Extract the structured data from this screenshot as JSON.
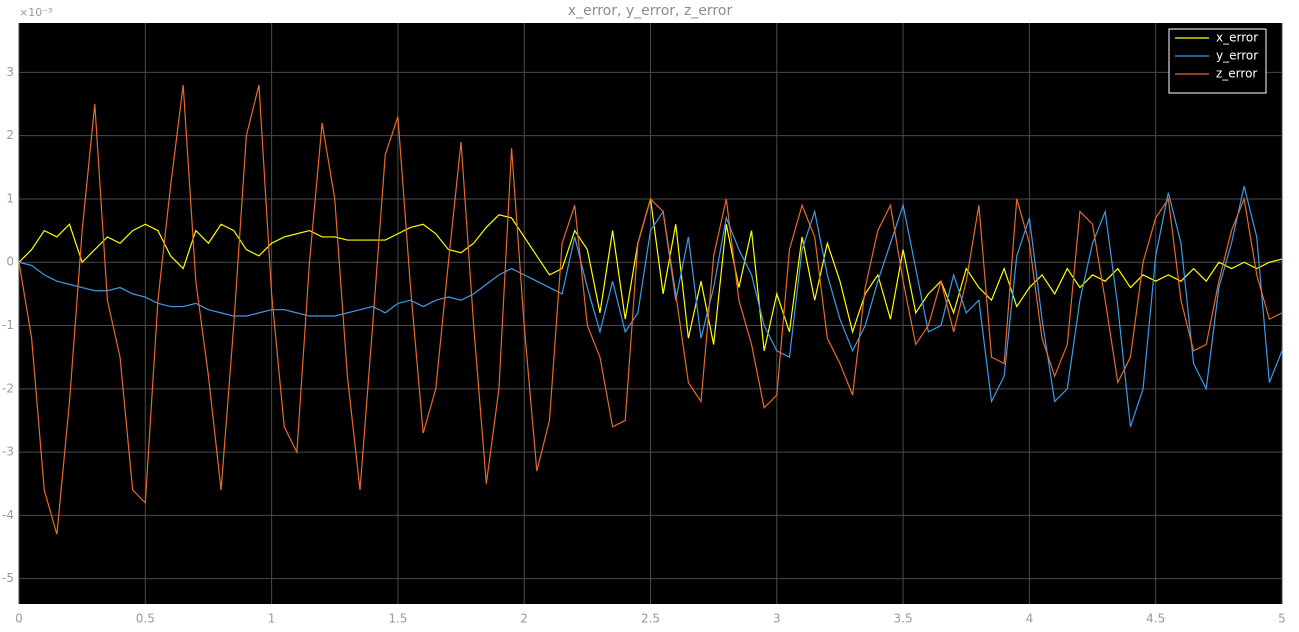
{
  "chart_data": {
    "type": "line",
    "title": "x_error, y_error, z_error",
    "y_multiplier": "×10⁻³",
    "xlim": [
      0,
      5
    ],
    "ylim": [
      -5.4,
      3.78
    ],
    "xticks": [
      0,
      0.5,
      1,
      1.5,
      2,
      2.5,
      3,
      3.5,
      4,
      4.5,
      5
    ],
    "yticks": [
      -5,
      -4,
      -3,
      -2,
      -1,
      0,
      1,
      2,
      3
    ],
    "grid": true,
    "legend": "top-right",
    "x": [
      0,
      0.05,
      0.1,
      0.15,
      0.2,
      0.25,
      0.3,
      0.35,
      0.4,
      0.45,
      0.5,
      0.55,
      0.6,
      0.65,
      0.7,
      0.75,
      0.8,
      0.85,
      0.9,
      0.95,
      1,
      1.05,
      1.1,
      1.15,
      1.2,
      1.25,
      1.3,
      1.35,
      1.4,
      1.45,
      1.5,
      1.55,
      1.6,
      1.65,
      1.7,
      1.75,
      1.8,
      1.85,
      1.9,
      1.95,
      2,
      2.05,
      2.1,
      2.15,
      2.2,
      2.25,
      2.3,
      2.35,
      2.4,
      2.45,
      2.5,
      2.55,
      2.6,
      2.65,
      2.7,
      2.75,
      2.8,
      2.85,
      2.9,
      2.95,
      3,
      3.05,
      3.1,
      3.15,
      3.2,
      3.25,
      3.3,
      3.35,
      3.4,
      3.45,
      3.5,
      3.55,
      3.6,
      3.65,
      3.7,
      3.75,
      3.8,
      3.85,
      3.9,
      3.95,
      4,
      4.05,
      4.1,
      4.15,
      4.2,
      4.25,
      4.3,
      4.35,
      4.4,
      4.45,
      4.5,
      4.55,
      4.6,
      4.65,
      4.7,
      4.75,
      4.8,
      4.85,
      4.9,
      4.95,
      5
    ],
    "series": [
      {
        "name": "x_error",
        "color": "#ffff00",
        "values": [
          0,
          0.2,
          0.5,
          0.4,
          0.6,
          0,
          0.2,
          0.4,
          0.3,
          0.5,
          0.6,
          0.5,
          0.1,
          -0.1,
          0.5,
          0.3,
          0.6,
          0.5,
          0.2,
          0.1,
          0.3,
          0.4,
          0.45,
          0.5,
          0.4,
          0.4,
          0.35,
          0.35,
          0.35,
          0.35,
          0.45,
          0.55,
          0.6,
          0.45,
          0.2,
          0.15,
          0.3,
          0.55,
          0.75,
          0.7,
          0.4,
          0.1,
          -0.2,
          -0.1,
          0.5,
          0.2,
          -0.8,
          0.5,
          -0.9,
          0.3,
          1,
          -0.5,
          0.6,
          -1.2,
          -0.3,
          -1.3,
          0.6,
          -0.4,
          0.5,
          -1.4,
          -0.5,
          -1.1,
          0.4,
          -0.6,
          0.3,
          -0.3,
          -1.1,
          -0.5,
          -0.2,
          -0.9,
          0.2,
          -0.8,
          -0.5,
          -0.3,
          -0.8,
          -0.1,
          -0.4,
          -0.6,
          -0.1,
          -0.7,
          -0.4,
          -0.2,
          -0.5,
          -0.1,
          -0.4,
          -0.2,
          -0.3,
          -0.1,
          -0.4,
          -0.2,
          -0.3,
          -0.2,
          -0.3,
          -0.1,
          -0.3,
          0,
          -0.1,
          0,
          -0.1,
          0,
          0.05
        ]
      },
      {
        "name": "y_error",
        "color": "#3d9be9",
        "values": [
          0,
          -0.05,
          -0.2,
          -0.3,
          -0.35,
          -0.4,
          -0.45,
          -0.45,
          -0.4,
          -0.5,
          -0.55,
          -0.65,
          -0.7,
          -0.7,
          -0.65,
          -0.75,
          -0.8,
          -0.85,
          -0.85,
          -0.8,
          -0.75,
          -0.75,
          -0.8,
          -0.85,
          -0.85,
          -0.85,
          -0.8,
          -0.75,
          -0.7,
          -0.8,
          -0.65,
          -0.6,
          -0.7,
          -0.6,
          -0.55,
          -0.6,
          -0.5,
          -0.35,
          -0.2,
          -0.1,
          -0.2,
          -0.3,
          -0.4,
          -0.5,
          0.4,
          -0.4,
          -1.1,
          -0.3,
          -1.1,
          -0.8,
          0.5,
          0.8,
          -0.6,
          0.4,
          -1.2,
          -0.4,
          0.7,
          0.2,
          -0.2,
          -1,
          -1.4,
          -1.5,
          0.2,
          0.8,
          -0.2,
          -0.9,
          -1.4,
          -1,
          -0.3,
          0.3,
          0.9,
          -0.1,
          -1.1,
          -1,
          -0.2,
          -0.8,
          -0.6,
          -2.2,
          -1.8,
          0.1,
          0.7,
          -0.9,
          -2.2,
          -2,
          -0.6,
          0.3,
          0.8,
          -0.7,
          -2.6,
          -2,
          0.1,
          1.1,
          0.3,
          -1.6,
          -2,
          -0.4,
          0.3,
          1.2,
          0.4,
          -1.9,
          -1.4
        ]
      },
      {
        "name": "z_error",
        "color": "#e8692c",
        "values": [
          0,
          -1.2,
          -3.6,
          -4.3,
          -2.2,
          0.5,
          2.5,
          -0.6,
          -1.5,
          -3.6,
          -3.8,
          -0.6,
          1.2,
          2.8,
          -0.3,
          -1.8,
          -3.6,
          -1,
          2,
          2.8,
          -0.5,
          -2.6,
          -3,
          0,
          2.2,
          1,
          -1.8,
          -3.6,
          -1,
          1.7,
          2.3,
          -0.4,
          -2.7,
          -2,
          0,
          1.9,
          -1,
          -3.5,
          -2,
          1.8,
          -1,
          -3.3,
          -2.5,
          0.3,
          0.9,
          -1,
          -1.5,
          -2.6,
          -2.5,
          0.3,
          1,
          0.8,
          -0.5,
          -1.9,
          -2.2,
          0.1,
          1,
          -0.6,
          -1.3,
          -2.3,
          -2.1,
          0.2,
          0.9,
          0.4,
          -1.2,
          -1.6,
          -2.1,
          -0.4,
          0.5,
          0.9,
          -0.3,
          -1.3,
          -1,
          -0.3,
          -1.1,
          -0.3,
          0.9,
          -1.5,
          -1.6,
          1,
          0.3,
          -1.2,
          -1.8,
          -1.3,
          0.8,
          0.6,
          -0.6,
          -1.9,
          -1.5,
          0,
          0.7,
          1,
          -0.6,
          -1.4,
          -1.3,
          -0.3,
          0.5,
          1,
          -0.2,
          -0.9,
          -0.8
        ]
      }
    ]
  }
}
